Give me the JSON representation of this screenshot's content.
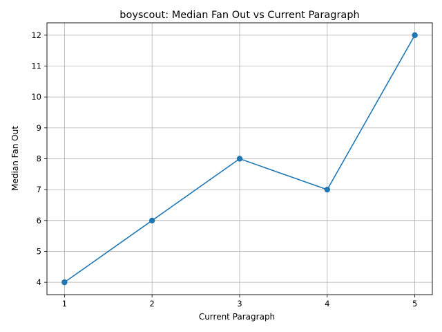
{
  "chart_data": {
    "type": "line",
    "title": "boyscout: Median Fan Out vs Current Paragraph",
    "xlabel": "Current Paragraph",
    "ylabel": "Median Fan Out",
    "x": [
      1,
      2,
      3,
      4,
      5
    ],
    "series": [
      {
        "values": [
          4,
          6,
          8,
          7,
          12
        ],
        "color": "#1f77b4",
        "marker": "circle"
      }
    ],
    "xlim": [
      0.8,
      5.2
    ],
    "ylim": [
      3.6,
      12.4
    ],
    "xticks": [
      "1",
      "2",
      "3",
      "4",
      "5"
    ],
    "yticks": [
      "4",
      "5",
      "6",
      "7",
      "8",
      "9",
      "10",
      "11",
      "12"
    ],
    "grid": true
  }
}
